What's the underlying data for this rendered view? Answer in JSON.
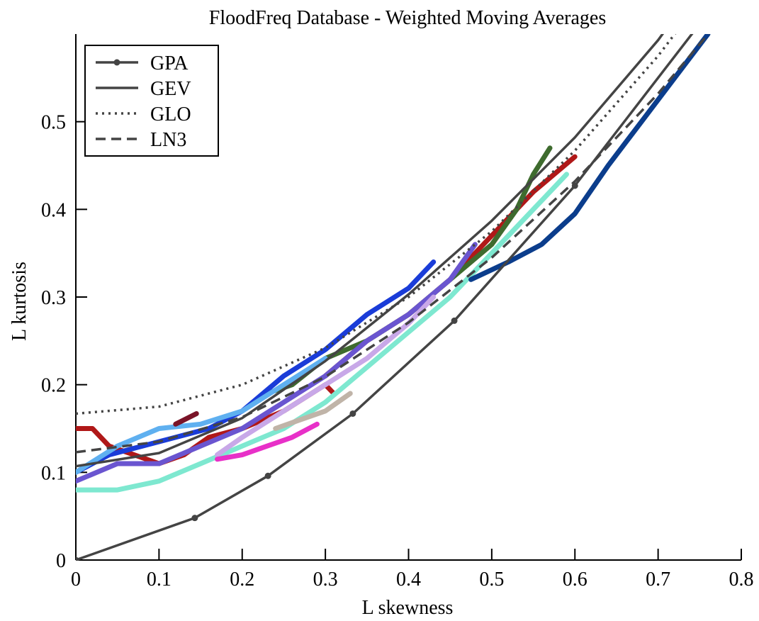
{
  "chart_data": {
    "type": "line",
    "title": "FloodFreq Database - Weighted Moving Averages",
    "xlabel": "L skewness",
    "ylabel": "L kurtosis",
    "xlim": [
      0,
      0.8
    ],
    "ylim": [
      0,
      0.6
    ],
    "xticks": [
      0,
      0.1,
      0.2,
      0.3,
      0.4,
      0.5,
      0.6,
      0.7,
      0.8
    ],
    "xtick_labels": [
      "0",
      "0.1",
      "0.2",
      "0.3",
      "0.4",
      "0.5",
      "0.6",
      "0.7",
      "0.8"
    ],
    "yticks": [
      0,
      0.1,
      0.2,
      0.3,
      0.4,
      0.5
    ],
    "ytick_labels": [
      "0",
      "0.1",
      "0.2",
      "0.3",
      "0.4",
      "0.5"
    ],
    "grid": false,
    "legend_position": "top-left",
    "series": [
      {
        "name": "GPA",
        "style": "solid-markers",
        "color": "#444444",
        "x": [
          0,
          0.143,
          0.231,
          0.333,
          0.455,
          0.6,
          0.8
        ],
        "y": [
          0,
          0.048,
          0.096,
          0.167,
          0.273,
          0.427,
          0.673
        ]
      },
      {
        "name": "GEV",
        "style": "solid",
        "color": "#444444",
        "x": [
          0,
          0.1,
          0.2,
          0.3,
          0.4,
          0.5,
          0.6,
          0.7,
          0.8
        ],
        "y": [
          0.107,
          0.122,
          0.162,
          0.227,
          0.303,
          0.387,
          0.482,
          0.593,
          0.724
        ]
      },
      {
        "name": "GLO",
        "style": "dotted",
        "color": "#444444",
        "x": [
          0,
          0.1,
          0.2,
          0.3,
          0.4,
          0.5,
          0.6,
          0.7,
          0.8
        ],
        "y": [
          0.167,
          0.175,
          0.2,
          0.242,
          0.3,
          0.375,
          0.467,
          0.575,
          0.7
        ]
      },
      {
        "name": "LN3",
        "style": "dashed",
        "color": "#444444",
        "x": [
          0,
          0.1,
          0.2,
          0.3,
          0.4,
          0.5,
          0.6,
          0.7,
          0.8
        ],
        "y": [
          0.123,
          0.135,
          0.163,
          0.209,
          0.271,
          0.345,
          0.432,
          0.532,
          0.645
        ]
      }
    ],
    "moving_averages": [
      {
        "color": "#b01818",
        "x": [
          0,
          0.02,
          0.04,
          0.07,
          0.1,
          0.13,
          0.16,
          0.2,
          0.25,
          0.3,
          0.31
        ],
        "y": [
          0.15,
          0.15,
          0.13,
          0.12,
          0.11,
          0.12,
          0.14,
          0.15,
          0.17,
          0.2,
          0.19
        ]
      },
      {
        "color": "#b01818",
        "x": [
          0.3,
          0.35,
          0.4,
          0.45,
          0.5,
          0.55,
          0.6
        ],
        "y": [
          0.21,
          0.25,
          0.28,
          0.32,
          0.37,
          0.42,
          0.46
        ]
      },
      {
        "color": "#3e6b2e",
        "x": [
          0.23,
          0.26,
          0.3,
          0.35,
          0.4,
          0.45,
          0.5,
          0.53,
          0.55,
          0.57
        ],
        "y": [
          0.19,
          0.2,
          0.23,
          0.25,
          0.28,
          0.32,
          0.36,
          0.4,
          0.44,
          0.47
        ]
      },
      {
        "color": "#1a3cd8",
        "x": [
          0,
          0.04,
          0.08,
          0.12,
          0.16,
          0.2,
          0.25,
          0.3,
          0.35,
          0.4,
          0.43
        ],
        "y": [
          0.1,
          0.12,
          0.13,
          0.14,
          0.15,
          0.17,
          0.21,
          0.24,
          0.28,
          0.31,
          0.34
        ]
      },
      {
        "color": "#5fb0f0",
        "x": [
          0,
          0.05,
          0.1,
          0.15,
          0.2,
          0.25,
          0.3
        ],
        "y": [
          0.1,
          0.13,
          0.15,
          0.155,
          0.17,
          0.2,
          0.23
        ]
      },
      {
        "color": "#6a55d0",
        "x": [
          0,
          0.05,
          0.1,
          0.15,
          0.2,
          0.25,
          0.3,
          0.35,
          0.4,
          0.45,
          0.48
        ],
        "y": [
          0.09,
          0.11,
          0.11,
          0.13,
          0.15,
          0.18,
          0.21,
          0.25,
          0.28,
          0.32,
          0.36
        ]
      },
      {
        "color": "#7ee8d0",
        "x": [
          0,
          0.05,
          0.1,
          0.15,
          0.2,
          0.25,
          0.3,
          0.35,
          0.4,
          0.45,
          0.5,
          0.55,
          0.59
        ],
        "y": [
          0.08,
          0.08,
          0.09,
          0.11,
          0.13,
          0.15,
          0.18,
          0.22,
          0.26,
          0.3,
          0.35,
          0.4,
          0.44
        ]
      },
      {
        "color": "#c8a8e8",
        "x": [
          0.17,
          0.2,
          0.25,
          0.3,
          0.35,
          0.4,
          0.43
        ],
        "y": [
          0.12,
          0.14,
          0.17,
          0.2,
          0.23,
          0.27,
          0.3
        ]
      },
      {
        "color": "#c0b4a8",
        "x": [
          0.24,
          0.27,
          0.3,
          0.33
        ],
        "y": [
          0.15,
          0.16,
          0.17,
          0.19
        ]
      },
      {
        "color": "#e830c8",
        "x": [
          0.17,
          0.2,
          0.23,
          0.26,
          0.29
        ],
        "y": [
          0.115,
          0.12,
          0.13,
          0.14,
          0.155
        ]
      },
      {
        "color": "#7a1428",
        "x": [
          0.12,
          0.145
        ],
        "y": [
          0.155,
          0.167
        ]
      },
      {
        "color": "#0b3d8c",
        "x": [
          0.475,
          0.52,
          0.56,
          0.6,
          0.64,
          0.68,
          0.72,
          0.76
        ],
        "y": [
          0.32,
          0.34,
          0.36,
          0.395,
          0.45,
          0.5,
          0.55,
          0.6
        ]
      }
    ]
  }
}
